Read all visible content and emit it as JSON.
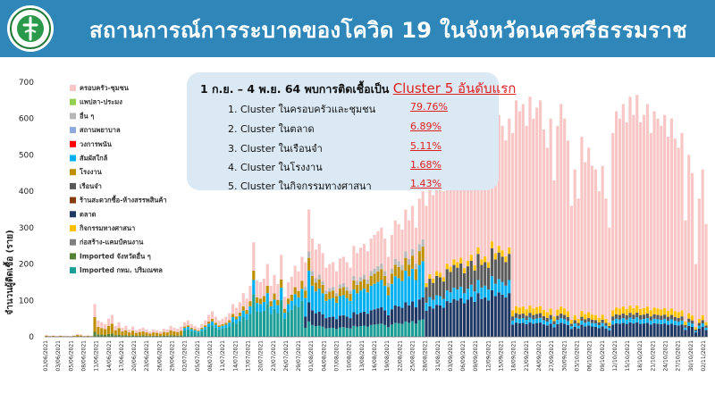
{
  "header": {
    "title": "สถานการณ์การระบาดของโควิด 19 ในจังหวัดนครศรีธรรมราช",
    "bg_color": "#2e86b9",
    "logo_icon": "ministry-of-public-health-emblem"
  },
  "info_box": {
    "heading": "1 ก.ย. – 4 พ.ย. 64 พบการติดเชื้อเป็น",
    "highlight": "Cluster 5 อันดับแรก",
    "items": [
      {
        "label": "1. Cluster ในครอบครัวและชุมชน",
        "value": "79.76%"
      },
      {
        "label": "2. Cluster ในตลาด",
        "value": "6.89%"
      },
      {
        "label": "3. Cluster ในเรือนจำ",
        "value": "5.11%"
      },
      {
        "label": "4. Cluster ในโรงงาน",
        "value": "1.68%"
      },
      {
        "label": "5. Cluster ในกิจกรรมทางศาสนา",
        "value": "1.43%"
      }
    ]
  },
  "chart_data": {
    "type": "bar",
    "stacked": true,
    "ylabel": "จำนวนผู้ติดเชื้อ (ราย)",
    "xlabel": "",
    "ylim": [
      0,
      700
    ],
    "yticks": [
      0,
      100,
      200,
      300,
      400,
      500,
      600,
      700
    ],
    "grid": false,
    "legend_position": "top-left",
    "x_tick_labels": [
      "01/06/2021",
      "03/06/2021",
      "05/06/2021",
      "08/06/2021",
      "11/06/2021",
      "14/06/2021",
      "17/06/2021",
      "20/06/2021",
      "23/06/2021",
      "26/06/2021",
      "29/06/2021",
      "02/07/2021",
      "05/07/2021",
      "08/07/2021",
      "11/07/2021",
      "14/07/2021",
      "17/07/2021",
      "20/07/2021",
      "23/07/2021",
      "26/07/2021",
      "29/07/2021",
      "01/08/2021",
      "04/08/2021",
      "07/08/2021",
      "10/08/2021",
      "13/08/2021",
      "16/08/2021",
      "19/08/2021",
      "22/08/2021",
      "25/08/2021",
      "28/08/2021",
      "31/08/2021",
      "03/09/2021",
      "06/09/2021",
      "09/09/2021",
      "12/09/2021",
      "15/09/2021",
      "18/09/2021",
      "21/09/2021",
      "24/09/2021",
      "27/09/2021",
      "30/09/2021",
      "03/10/2021",
      "06/10/2021",
      "09/10/2021",
      "12/10/2021",
      "15/10/2021",
      "18/10/2021",
      "21/10/2021",
      "24/10/2021",
      "27/10/2021",
      "30/10/2021",
      "02/11/2021"
    ],
    "legend": [
      {
        "name": "ครอบครัว-ชุมชน",
        "color": "#f9c6c6"
      },
      {
        "name": "แพปลา-ประมง",
        "color": "#92d050"
      },
      {
        "name": "อื่น ๆ",
        "color": "#b8b8b8"
      },
      {
        "name": "สถานพยาบาล",
        "color": "#8ea9db"
      },
      {
        "name": "วงการพนัน",
        "color": "#ff0000"
      },
      {
        "name": "สัมผัสใกล้",
        "color": "#00b0f0"
      },
      {
        "name": "โรงงาน",
        "color": "#bf8f00"
      },
      {
        "name": "เรือนจำ",
        "color": "#595959"
      },
      {
        "name": "ร้านสะดวกซื้อ-ห้างสรรพสินค้า",
        "color": "#843c0c"
      },
      {
        "name": "ตลาด",
        "color": "#1f3864"
      },
      {
        "name": "กิจกรรมทางศาสนา",
        "color": "#ffc000"
      },
      {
        "name": "ก่อสร้าง-แคมป์คนงาน",
        "color": "#7f7f7f"
      },
      {
        "name": "Imported จังหวัดอื่น ๆ",
        "color": "#548235"
      },
      {
        "name": "Imported กทม. ปริมณฑล",
        "color": "#1a9e96"
      }
    ],
    "daily_totals": [
      5,
      3,
      4,
      2,
      4,
      3,
      3,
      2,
      4,
      8,
      6,
      3,
      4,
      3,
      90,
      45,
      40,
      35,
      50,
      60,
      30,
      40,
      25,
      30,
      20,
      28,
      18,
      22,
      25,
      20,
      15,
      20,
      18,
      15,
      22,
      20,
      30,
      25,
      22,
      28,
      40,
      45,
      35,
      30,
      25,
      35,
      45,
      60,
      70,
      55,
      45,
      50,
      55,
      65,
      90,
      80,
      95,
      120,
      105,
      140,
      260,
      155,
      150,
      160,
      200,
      140,
      170,
      145,
      225,
      110,
      150,
      165,
      195,
      180,
      220,
      205,
      350,
      270,
      240,
      255,
      230,
      190,
      200,
      205,
      180,
      215,
      220,
      205,
      190,
      250,
      230,
      245,
      255,
      235,
      270,
      280,
      290,
      300,
      270,
      220,
      280,
      320,
      310,
      295,
      350,
      320,
      360,
      300,
      380,
      400,
      360,
      420,
      390,
      440,
      430,
      400,
      490,
      470,
      520,
      500,
      530,
      460,
      510,
      550,
      480,
      600,
      520,
      540,
      500,
      640,
      560,
      610,
      580,
      540,
      600,
      560,
      650,
      620,
      640,
      580,
      660,
      600,
      630,
      650,
      570,
      520,
      600,
      430,
      580,
      640,
      600,
      540,
      360,
      460,
      380,
      550,
      480,
      520,
      470,
      460,
      400,
      470,
      380,
      300,
      560,
      620,
      600,
      640,
      590,
      660,
      610,
      665,
      590,
      610,
      640,
      560,
      620,
      600,
      580,
      610,
      550,
      600,
      545,
      520,
      560,
      320,
      500,
      450,
      200,
      380,
      460,
      310
    ]
  }
}
